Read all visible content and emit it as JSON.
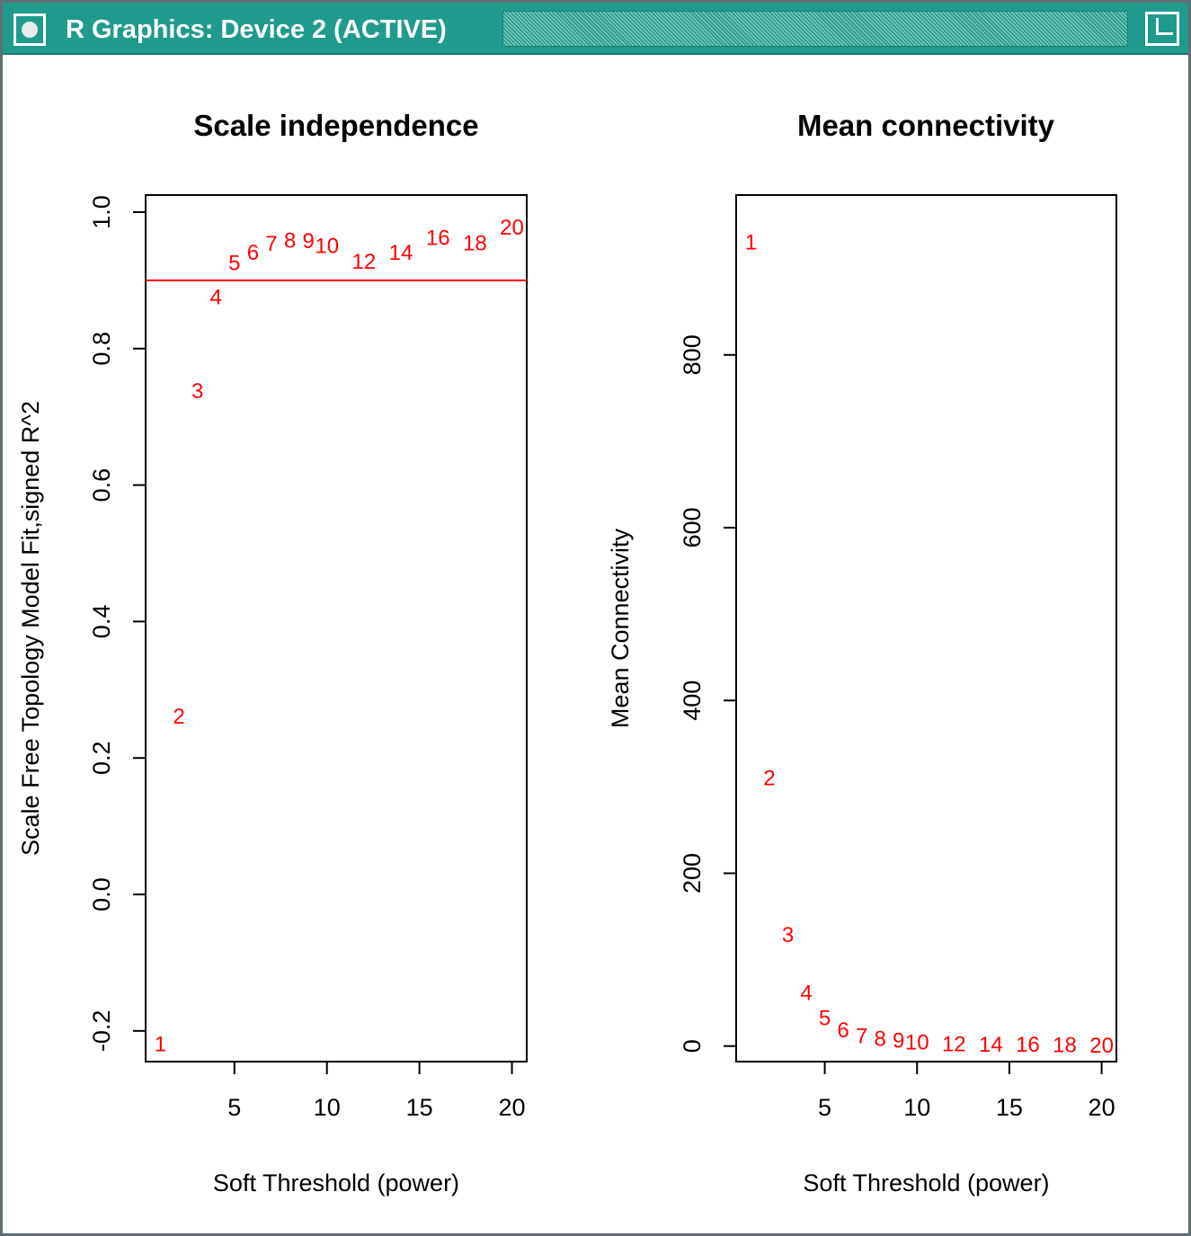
{
  "window": {
    "title": "R Graphics: Device 2 (ACTIVE)",
    "titlebar_color": "#1f9a8c"
  },
  "chart_data": [
    {
      "type": "scatter",
      "title": "Scale independence",
      "xlabel": "Soft Threshold (power)",
      "ylabel": "Scale Free Topology Model Fit,signed R^2",
      "xlim": [
        0.2,
        20.8
      ],
      "ylim": [
        -0.245,
        1.025
      ],
      "xticks": [
        5,
        10,
        15,
        20
      ],
      "yticks": [
        -0.2,
        0.0,
        0.2,
        0.4,
        0.6,
        0.8,
        1.0
      ],
      "ytick_labels": [
        "-0.2",
        "0.0",
        "0.2",
        "0.4",
        "0.6",
        "0.8",
        "1.0"
      ],
      "marker": "text labels (power values)",
      "marker_color": "#ff0000",
      "hline": {
        "y": 0.9,
        "color": "#ff0000"
      },
      "grid": false,
      "points": [
        {
          "x": 1,
          "y": -0.22,
          "label": "1"
        },
        {
          "x": 2,
          "y": 0.26,
          "label": "2"
        },
        {
          "x": 3,
          "y": 0.737,
          "label": "3"
        },
        {
          "x": 4,
          "y": 0.875,
          "label": "4"
        },
        {
          "x": 5,
          "y": 0.925,
          "label": "5"
        },
        {
          "x": 6,
          "y": 0.94,
          "label": "6"
        },
        {
          "x": 7,
          "y": 0.953,
          "label": "7"
        },
        {
          "x": 8,
          "y": 0.958,
          "label": "8"
        },
        {
          "x": 9,
          "y": 0.957,
          "label": "9"
        },
        {
          "x": 10,
          "y": 0.95,
          "label": "10"
        },
        {
          "x": 12,
          "y": 0.927,
          "label": "12"
        },
        {
          "x": 14,
          "y": 0.94,
          "label": "14"
        },
        {
          "x": 16,
          "y": 0.962,
          "label": "16"
        },
        {
          "x": 18,
          "y": 0.954,
          "label": "18"
        },
        {
          "x": 20,
          "y": 0.977,
          "label": "20"
        }
      ]
    },
    {
      "type": "scatter",
      "title": "Mean connectivity",
      "xlabel": "Soft Threshold (power)",
      "ylabel": "Mean Connectivity",
      "xlim": [
        0.2,
        20.8
      ],
      "ylim": [
        -18,
        985
      ],
      "xticks": [
        5,
        10,
        15,
        20
      ],
      "yticks": [
        0,
        200,
        400,
        600,
        800
      ],
      "ytick_labels": [
        "0",
        "200",
        "400",
        "600",
        "800"
      ],
      "marker": "text labels (power values)",
      "marker_color": "#ff0000",
      "grid": false,
      "points": [
        {
          "x": 1,
          "y": 930,
          "label": "1"
        },
        {
          "x": 2,
          "y": 310,
          "label": "2"
        },
        {
          "x": 3,
          "y": 128,
          "label": "3"
        },
        {
          "x": 4,
          "y": 61,
          "label": "4"
        },
        {
          "x": 5,
          "y": 32,
          "label": "5"
        },
        {
          "x": 6,
          "y": 18,
          "label": "6"
        },
        {
          "x": 7,
          "y": 11,
          "label": "7"
        },
        {
          "x": 8,
          "y": 8,
          "label": "8"
        },
        {
          "x": 9,
          "y": 6,
          "label": "9"
        },
        {
          "x": 10,
          "y": 4,
          "label": "10"
        },
        {
          "x": 12,
          "y": 2,
          "label": "12"
        },
        {
          "x": 14,
          "y": 1,
          "label": "14"
        },
        {
          "x": 16,
          "y": 1,
          "label": "16"
        },
        {
          "x": 18,
          "y": 0.5,
          "label": "18"
        },
        {
          "x": 20,
          "y": 0.3,
          "label": "20"
        }
      ]
    }
  ]
}
